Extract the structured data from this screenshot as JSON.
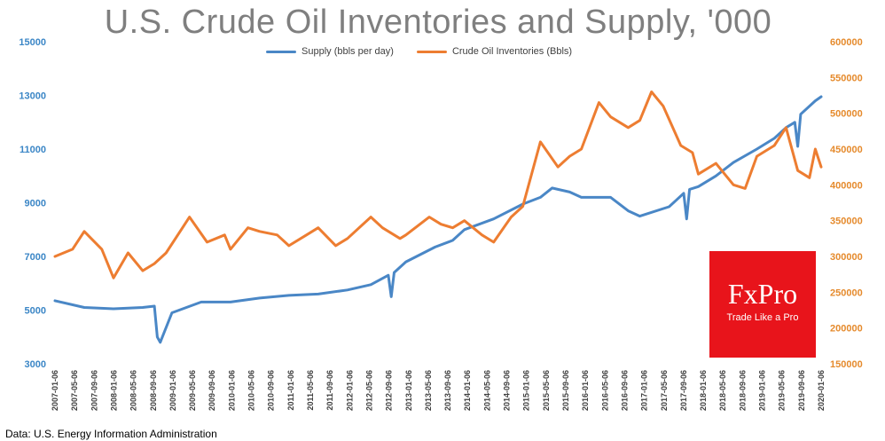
{
  "title": "U.S. Crude Oil Inventories and Supply, '000",
  "source": "Data: U.S. Energy Information Administration",
  "logo": {
    "brand": "FxPro",
    "tagline": "Trade Like a Pro"
  },
  "colors": {
    "supply": "#4a87c6",
    "inventories": "#ed7d31",
    "logo_bg": "#e8141b"
  },
  "chart_data": {
    "type": "line",
    "title": "U.S. Crude Oil Inventories and Supply, '000",
    "legend_position": "top-center",
    "grid": false,
    "left_axis": {
      "ylim": [
        3000,
        15000
      ],
      "ticks": [
        3000,
        5000,
        7000,
        9000,
        11000,
        13000,
        15000
      ]
    },
    "right_axis": {
      "ylim": [
        150000,
        600000
      ],
      "ticks": [
        150000,
        200000,
        250000,
        300000,
        350000,
        400000,
        450000,
        500000,
        550000,
        600000
      ]
    },
    "x_ticks": [
      "2007-01-06",
      "2007-05-06",
      "2007-09-06",
      "2008-01-06",
      "2008-05-06",
      "2008-09-06",
      "2009-01-06",
      "2009-05-06",
      "2009-09-06",
      "2010-01-06",
      "2010-05-06",
      "2010-09-06",
      "2011-01-06",
      "2011-05-06",
      "2011-09-06",
      "2012-01-06",
      "2012-05-06",
      "2012-09-06",
      "2013-01-06",
      "2013-05-06",
      "2013-09-06",
      "2014-01-06",
      "2014-05-06",
      "2014-09-06",
      "2015-01-06",
      "2015-05-06",
      "2015-09-06",
      "2016-01-06",
      "2016-05-06",
      "2016-09-06",
      "2017-01-06",
      "2017-05-06",
      "2017-09-06",
      "2018-01-06",
      "2018-05-06",
      "2018-09-06",
      "2019-01-06",
      "2019-05-06",
      "2019-09-06",
      "2020-01-06"
    ],
    "series": [
      {
        "name": "Supply (bbls per day)",
        "axis": "left",
        "x": [
          2007.0,
          2007.5,
          2008.0,
          2008.5,
          2008.7,
          2008.75,
          2008.8,
          2009.0,
          2009.5,
          2010.0,
          2010.5,
          2011.0,
          2011.5,
          2012.0,
          2012.4,
          2012.7,
          2012.75,
          2012.8,
          2013.0,
          2013.5,
          2013.8,
          2014.0,
          2014.5,
          2015.0,
          2015.3,
          2015.5,
          2015.8,
          2016.0,
          2016.5,
          2016.8,
          2017.0,
          2017.5,
          2017.75,
          2017.8,
          2017.85,
          2018.0,
          2018.3,
          2018.6,
          2019.0,
          2019.3,
          2019.5,
          2019.65,
          2019.7,
          2019.75,
          2020.0,
          2020.1
        ],
        "values": [
          5350,
          5100,
          5050,
          5100,
          5150,
          4000,
          3800,
          4900,
          5300,
          5300,
          5450,
          5550,
          5600,
          5750,
          5950,
          6300,
          5500,
          6400,
          6800,
          7350,
          7600,
          8000,
          8400,
          8950,
          9200,
          9550,
          9400,
          9200,
          9200,
          8700,
          8500,
          8850,
          9350,
          8400,
          9500,
          9600,
          10000,
          10500,
          11000,
          11400,
          11800,
          12000,
          11100,
          12300,
          12800,
          12950
        ]
      },
      {
        "name": "Crude Oil Inventories (Bbls)",
        "axis": "right",
        "x": [
          2007.0,
          2007.3,
          2007.5,
          2007.8,
          2008.0,
          2008.25,
          2008.5,
          2008.7,
          2008.9,
          2009.3,
          2009.6,
          2009.9,
          2010.0,
          2010.3,
          2010.5,
          2010.8,
          2011.0,
          2011.3,
          2011.5,
          2011.8,
          2012.0,
          2012.4,
          2012.6,
          2012.9,
          2013.0,
          2013.4,
          2013.6,
          2013.8,
          2014.0,
          2014.3,
          2014.5,
          2014.8,
          2015.0,
          2015.3,
          2015.6,
          2015.8,
          2016.0,
          2016.3,
          2016.5,
          2016.8,
          2017.0,
          2017.2,
          2017.4,
          2017.7,
          2017.9,
          2018.0,
          2018.3,
          2018.6,
          2018.8,
          2019.0,
          2019.3,
          2019.5,
          2019.7,
          2019.9,
          2020.0,
          2020.1
        ],
        "values": [
          300000,
          310000,
          335000,
          310000,
          270000,
          305000,
          280000,
          290000,
          305000,
          355000,
          320000,
          330000,
          310000,
          340000,
          335000,
          330000,
          315000,
          330000,
          340000,
          315000,
          325000,
          355000,
          340000,
          325000,
          330000,
          355000,
          345000,
          340000,
          350000,
          330000,
          320000,
          355000,
          370000,
          460000,
          425000,
          440000,
          450000,
          515000,
          495000,
          480000,
          490000,
          530000,
          510000,
          455000,
          445000,
          415000,
          430000,
          400000,
          395000,
          440000,
          455000,
          480000,
          420000,
          410000,
          450000,
          425000
        ]
      }
    ]
  }
}
